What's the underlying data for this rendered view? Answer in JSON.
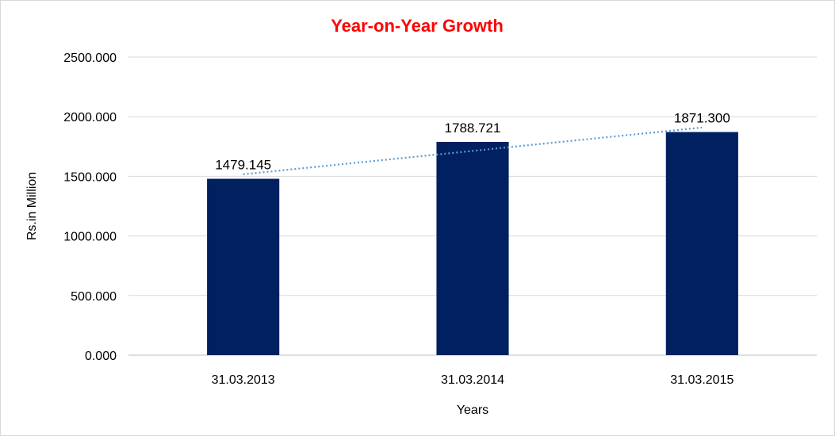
{
  "chart_data": {
    "type": "bar",
    "title": "Year-on-Year Growth",
    "xlabel": "Years",
    "ylabel": "Rs.in Million",
    "categories": [
      "31.03.2013",
      "31.03.2014",
      "31.03.2015"
    ],
    "values": [
      1479.145,
      1788.721,
      1871.3
    ],
    "data_labels": [
      "1479.145",
      "1788.721",
      "1871.300"
    ],
    "ylim": [
      0,
      2500
    ],
    "yticks": [
      0,
      500,
      1000,
      1500,
      2000,
      2500
    ],
    "ytick_labels": [
      "0.000",
      "500.000",
      "1000.000",
      "1500.000",
      "2000.000",
      "2500.000"
    ],
    "grid": true,
    "legend": "none",
    "trendline": {
      "type": "linear",
      "style": "dotted",
      "color": "#5b9bd5"
    },
    "colors": {
      "bar": "#002060",
      "title": "#ff0000",
      "grid": "#d9d9d9",
      "axis": "#bfbfbf"
    }
  }
}
